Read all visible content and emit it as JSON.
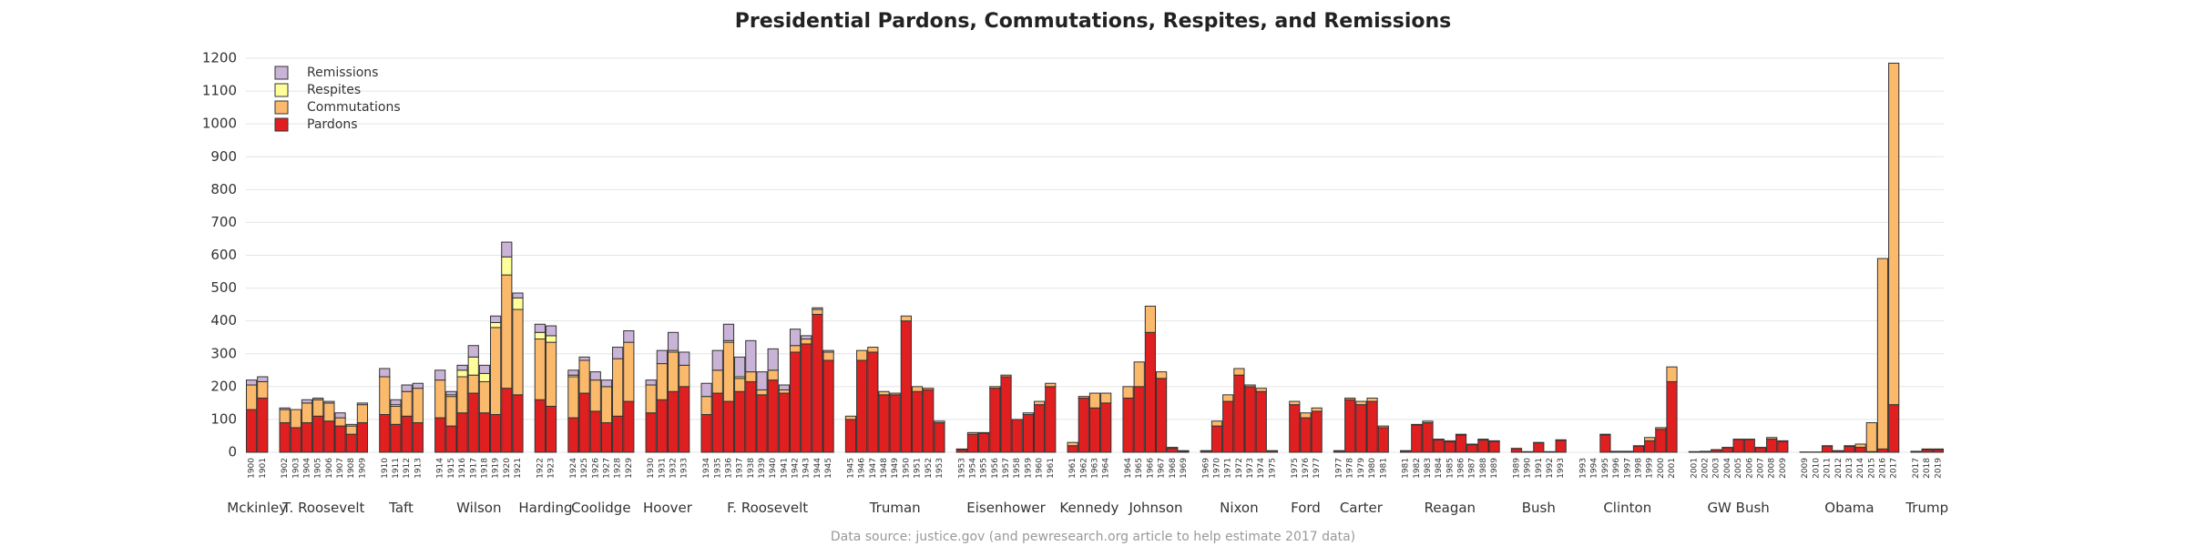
{
  "chart_data": {
    "type": "bar",
    "stacked": true,
    "title": "Presidential Pardons, Commutations, Respites, and Remissions",
    "source": "Data source: justice.gov (and pewresearch.org article to help estimate 2017 data)",
    "ylim": [
      0,
      1200
    ],
    "yticks": [
      0,
      100,
      200,
      300,
      400,
      500,
      600,
      700,
      800,
      900,
      1000,
      1100,
      1200
    ],
    "grid": true,
    "legend": "top-left",
    "series": [
      {
        "name": "Pardons",
        "color": "#df1f20"
      },
      {
        "name": "Commutations",
        "color": "#fbb96c"
      },
      {
        "name": "Respites",
        "color": "#ffff99"
      },
      {
        "name": "Remissions",
        "color": "#c9b3d6"
      }
    ],
    "groups": [
      {
        "name": "Mckinley",
        "categories": [
          "1900",
          "1901"
        ],
        "values": [
          [
            130,
            165
          ],
          [
            75,
            50
          ],
          [
            0,
            0
          ],
          [
            15,
            15
          ]
        ]
      },
      {
        "name": "T. Roosevelt",
        "categories": [
          "1902",
          "1903",
          "1904",
          "1905",
          "1906",
          "1907",
          "1908",
          "1909"
        ],
        "values": [
          [
            90,
            75,
            90,
            110,
            95,
            80,
            55,
            90
          ],
          [
            40,
            55,
            60,
            50,
            55,
            25,
            25,
            55
          ],
          [
            0,
            0,
            0,
            0,
            0,
            0,
            0,
            0
          ],
          [
            5,
            0,
            10,
            5,
            5,
            15,
            5,
            5
          ]
        ]
      },
      {
        "name": "Taft",
        "categories": [
          "1910",
          "1911",
          "1912",
          "1913"
        ],
        "values": [
          [
            115,
            85,
            110,
            90
          ],
          [
            115,
            55,
            75,
            105
          ],
          [
            0,
            5,
            0,
            0
          ],
          [
            25,
            15,
            20,
            15
          ]
        ]
      },
      {
        "name": "Wilson",
        "categories": [
          "1914",
          "1915",
          "1916",
          "1917",
          "1918",
          "1919",
          "1920",
          "1921"
        ],
        "values": [
          [
            105,
            80,
            120,
            180,
            120,
            115,
            195,
            175
          ],
          [
            115,
            90,
            110,
            55,
            95,
            265,
            345,
            260
          ],
          [
            0,
            5,
            20,
            55,
            25,
            15,
            55,
            35
          ],
          [
            30,
            10,
            15,
            35,
            25,
            20,
            45,
            15
          ]
        ]
      },
      {
        "name": "Harding",
        "categories": [
          "1922",
          "1923"
        ],
        "values": [
          [
            160,
            140
          ],
          [
            185,
            195
          ],
          [
            20,
            20
          ],
          [
            25,
            30
          ]
        ]
      },
      {
        "name": "Coolidge",
        "categories": [
          "1924",
          "1925",
          "1926",
          "1927",
          "1928",
          "1929"
        ],
        "values": [
          [
            105,
            180,
            125,
            90,
            110,
            155
          ],
          [
            125,
            100,
            95,
            110,
            175,
            180
          ],
          [
            5,
            0,
            0,
            0,
            0,
            0
          ],
          [
            15,
            10,
            25,
            20,
            35,
            35
          ]
        ]
      },
      {
        "name": "Hoover",
        "categories": [
          "1930",
          "1931",
          "1932",
          "1933"
        ],
        "values": [
          [
            120,
            160,
            185,
            200
          ],
          [
            85,
            110,
            120,
            65
          ],
          [
            0,
            0,
            5,
            0
          ],
          [
            15,
            40,
            55,
            40
          ]
        ]
      },
      {
        "name": "F. Roosevelt",
        "categories": [
          "1934",
          "1935",
          "1936",
          "1937",
          "1938",
          "1939",
          "1940",
          "1941",
          "1942",
          "1943",
          "1944",
          "1945"
        ],
        "values": [
          [
            115,
            180,
            155,
            185,
            215,
            175,
            220,
            180,
            305,
            330,
            420,
            280
          ],
          [
            55,
            70,
            180,
            40,
            30,
            15,
            30,
            10,
            20,
            15,
            15,
            25
          ],
          [
            0,
            0,
            5,
            5,
            0,
            0,
            0,
            0,
            0,
            0,
            0,
            0
          ],
          [
            40,
            60,
            50,
            60,
            95,
            55,
            65,
            15,
            50,
            10,
            5,
            5
          ]
        ]
      },
      {
        "name": "Truman",
        "categories": [
          "1945",
          "1946",
          "1947",
          "1948",
          "1949",
          "1950",
          "1951",
          "1952",
          "1953"
        ],
        "values": [
          [
            100,
            280,
            305,
            175,
            175,
            400,
            185,
            190,
            90
          ],
          [
            10,
            30,
            15,
            10,
            5,
            15,
            15,
            5,
            5
          ],
          [
            0,
            0,
            0,
            0,
            0,
            0,
            0,
            0,
            0
          ],
          [
            0,
            0,
            0,
            0,
            0,
            0,
            0,
            0,
            0
          ]
        ]
      },
      {
        "name": "Eisenhower",
        "categories": [
          "1953",
          "1954",
          "1955",
          "1956",
          "1957",
          "1958",
          "1959",
          "1960",
          "1961"
        ],
        "values": [
          [
            8,
            55,
            58,
            195,
            230,
            100,
            115,
            145,
            200
          ],
          [
            2,
            5,
            2,
            5,
            5,
            0,
            5,
            10,
            10
          ],
          [
            0,
            0,
            0,
            0,
            0,
            0,
            0,
            0,
            0
          ],
          [
            0,
            0,
            0,
            0,
            0,
            0,
            0,
            0,
            0
          ]
        ]
      },
      {
        "name": "Kennedy",
        "categories": [
          "1961",
          "1962",
          "1963",
          "1964"
        ],
        "values": [
          [
            20,
            165,
            135,
            150
          ],
          [
            10,
            5,
            45,
            30
          ],
          [
            0,
            0,
            0,
            0
          ],
          [
            0,
            0,
            0,
            0
          ]
        ]
      },
      {
        "name": "Johnson",
        "categories": [
          "1964",
          "1965",
          "1966",
          "1967",
          "1968",
          "1969"
        ],
        "values": [
          [
            165,
            200,
            365,
            225,
            12,
            3
          ],
          [
            35,
            75,
            80,
            20,
            3,
            2
          ],
          [
            0,
            0,
            0,
            0,
            0,
            0
          ],
          [
            0,
            0,
            0,
            0,
            0,
            0
          ]
        ]
      },
      {
        "name": "Nixon",
        "categories": [
          "1969",
          "1970",
          "1971",
          "1972",
          "1973",
          "1974",
          "1975"
        ],
        "values": [
          [
            4,
            80,
            155,
            235,
            200,
            185,
            4
          ],
          [
            1,
            15,
            20,
            20,
            5,
            10,
            1
          ],
          [
            0,
            0,
            0,
            0,
            0,
            0,
            0
          ],
          [
            0,
            0,
            0,
            0,
            0,
            0,
            0
          ]
        ]
      },
      {
        "name": "Ford",
        "categories": [
          "1975",
          "1976",
          "1977"
        ],
        "values": [
          [
            145,
            105,
            125
          ],
          [
            10,
            15,
            10
          ],
          [
            0,
            0,
            0
          ],
          [
            0,
            0,
            0
          ]
        ]
      },
      {
        "name": "Carter",
        "categories": [
          "1977",
          "1978",
          "1979",
          "1980",
          "1981"
        ],
        "values": [
          [
            4,
            160,
            145,
            155,
            75
          ],
          [
            1,
            5,
            10,
            10,
            5
          ],
          [
            0,
            0,
            0,
            0,
            0
          ],
          [
            0,
            0,
            0,
            0,
            0
          ]
        ]
      },
      {
        "name": "Reagan",
        "categories": [
          "1981",
          "1982",
          "1983",
          "1984",
          "1985",
          "1986",
          "1987",
          "1988",
          "1989"
        ],
        "values": [
          [
            4,
            83,
            90,
            38,
            32,
            52,
            23,
            37,
            33
          ],
          [
            1,
            2,
            5,
            2,
            3,
            3,
            2,
            3,
            2
          ],
          [
            0,
            0,
            0,
            0,
            0,
            0,
            0,
            0,
            0
          ],
          [
            0,
            0,
            0,
            0,
            0,
            0,
            0,
            0,
            0
          ]
        ]
      },
      {
        "name": "Bush",
        "categories": [
          "1989",
          "1990",
          "1991",
          "1992",
          "1993"
        ],
        "values": [
          [
            11,
            2,
            29,
            2,
            36
          ],
          [
            1,
            0,
            1,
            0,
            2
          ],
          [
            0,
            0,
            0,
            0,
            0
          ],
          [
            0,
            0,
            0,
            0,
            0
          ]
        ]
      },
      {
        "name": "Clinton",
        "categories": [
          "1993",
          "1994",
          "1995",
          "1996",
          "1997",
          "1998",
          "1999",
          "2000",
          "2001"
        ],
        "values": [
          [
            0,
            0,
            53,
            2,
            2,
            19,
            35,
            70,
            215
          ],
          [
            0,
            0,
            2,
            1,
            1,
            1,
            10,
            5,
            45
          ],
          [
            0,
            0,
            0,
            0,
            0,
            0,
            0,
            0,
            0
          ],
          [
            0,
            0,
            0,
            0,
            0,
            0,
            0,
            0,
            0
          ]
        ]
      },
      {
        "name": "GW Bush",
        "categories": [
          "2001",
          "2002",
          "2003",
          "2004",
          "2005",
          "2006",
          "2007",
          "2008",
          "2009"
        ],
        "values": [
          [
            2,
            3,
            7,
            14,
            39,
            39,
            14,
            40,
            33
          ],
          [
            0,
            0,
            1,
            1,
            1,
            1,
            1,
            5,
            2
          ],
          [
            0,
            0,
            0,
            0,
            0,
            0,
            0,
            0,
            0
          ],
          [
            0,
            0,
            0,
            0,
            0,
            0,
            0,
            0,
            0
          ]
        ]
      },
      {
        "name": "Obama",
        "categories": [
          "2009",
          "2010",
          "2011",
          "2012",
          "2013",
          "2014",
          "2015",
          "2016",
          "2017"
        ],
        "values": [
          [
            1,
            1,
            19,
            4,
            18,
            15,
            2,
            10,
            145
          ],
          [
            0,
            0,
            1,
            1,
            2,
            10,
            88,
            580,
            1040
          ],
          [
            0,
            0,
            0,
            0,
            0,
            0,
            0,
            0,
            0
          ],
          [
            0,
            0,
            0,
            0,
            0,
            0,
            0,
            0,
            0
          ]
        ]
      },
      {
        "name": "Trump",
        "categories": [
          "2017",
          "2018",
          "2019"
        ],
        "values": [
          [
            2,
            8,
            8
          ],
          [
            1,
            2,
            2
          ],
          [
            0,
            0,
            0
          ],
          [
            0,
            0,
            0
          ]
        ]
      }
    ]
  }
}
